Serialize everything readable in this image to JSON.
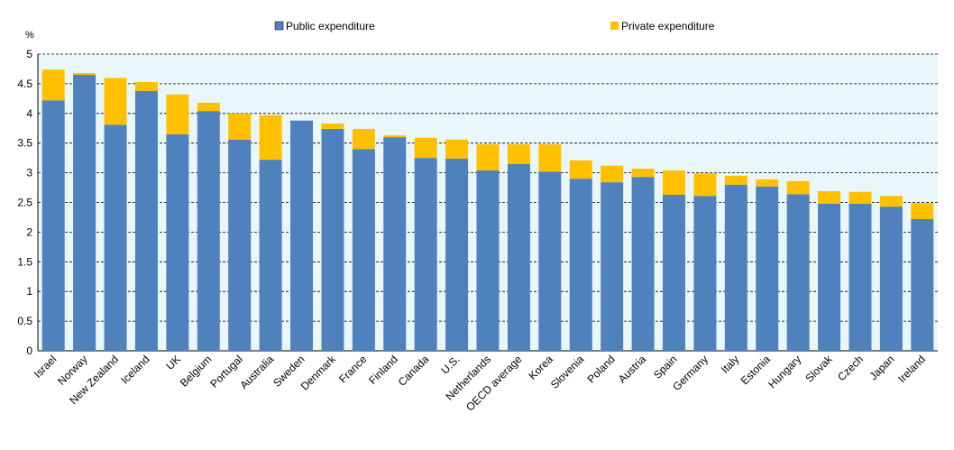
{
  "chart_data": {
    "type": "stacked-bar",
    "y_unit": "%",
    "categories": [
      "Israel",
      "Norway",
      "New Zealand",
      "Iceland",
      "UK",
      "Belgium",
      "Portugal",
      "Australia",
      "Sweden",
      "Denmark",
      "France",
      "Finland",
      "Canada",
      "U.S.",
      "Netherlands",
      "OECD average",
      "Korea",
      "Slovenia",
      "Poland",
      "Austria",
      "Spain",
      "Germany",
      "Italy",
      "Estonia",
      "Hungary",
      "Slovak",
      "Czech",
      "Japan",
      "Ireland"
    ],
    "series": [
      {
        "name": "Public expenditure",
        "color": "#4f81bd",
        "values": [
          4.22,
          4.65,
          3.81,
          4.38,
          3.65,
          4.04,
          3.56,
          3.22,
          3.88,
          3.74,
          3.4,
          3.6,
          3.25,
          3.24,
          3.04,
          3.15,
          3.02,
          2.9,
          2.84,
          2.93,
          2.63,
          2.61,
          2.8,
          2.77,
          2.64,
          2.48,
          2.48,
          2.43,
          2.22
        ]
      },
      {
        "name": "Private expenditure",
        "color": "#ffc000",
        "values": [
          0.52,
          0.03,
          0.79,
          0.15,
          0.67,
          0.14,
          0.44,
          0.75,
          0,
          0.09,
          0.34,
          0.03,
          0.34,
          0.32,
          0.44,
          0.33,
          0.46,
          0.31,
          0.28,
          0.14,
          0.41,
          0.38,
          0.15,
          0.12,
          0.22,
          0.21,
          0.2,
          0.18,
          0.27
        ]
      }
    ],
    "ylim": [
      0,
      5
    ],
    "yticks": [
      0,
      0.5,
      1,
      1.5,
      2,
      2.5,
      3,
      3.5,
      4,
      4.5,
      5
    ],
    "grid": true,
    "background": "#eaf7fa"
  }
}
